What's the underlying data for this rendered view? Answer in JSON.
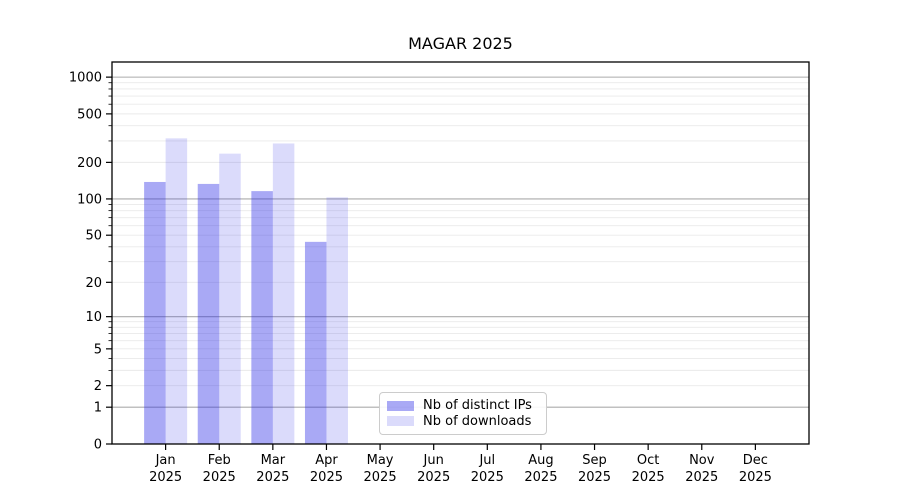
{
  "title": "MAGAR 2025",
  "chart_data": {
    "type": "bar",
    "title": "MAGAR 2025",
    "xlabel": "",
    "ylabel": "",
    "x_axis": {
      "months": [
        "Jan",
        "Feb",
        "Mar",
        "Apr",
        "May",
        "Jun",
        "Jul",
        "Aug",
        "Sep",
        "Oct",
        "Nov",
        "Dec"
      ],
      "year": "2025"
    },
    "y_axis": {
      "scale": "log1p",
      "tick_labels": [
        0,
        1,
        2,
        5,
        10,
        20,
        50,
        100,
        200,
        500,
        1000
      ],
      "major_gridlines": [
        1,
        10,
        100,
        1000
      ],
      "minor_gridlines": [
        2,
        3,
        4,
        5,
        6,
        7,
        8,
        9,
        20,
        30,
        40,
        50,
        60,
        70,
        80,
        90,
        200,
        300,
        400,
        500,
        600,
        700,
        800,
        900
      ],
      "ylim": [
        0,
        1330
      ]
    },
    "series": [
      {
        "name": "Nb of distinct IPs",
        "key": "distinct-ips",
        "color": "rgba(40,40,230,0.40)",
        "color_hex_on_white": "#a9a9f5",
        "values": [
          138,
          133,
          116,
          44,
          0,
          0,
          0,
          0,
          0,
          0,
          0,
          0
        ]
      },
      {
        "name": "Nb of downloads",
        "key": "downloads",
        "color": "rgba(40,40,230,0.17)",
        "color_hex_on_white": "#dadaf8",
        "values": [
          315,
          236,
          286,
          103,
          0,
          0,
          0,
          0,
          0,
          0,
          0,
          0
        ]
      }
    ],
    "legend": {
      "position": "lower-center",
      "items": [
        "Nb of distinct IPs",
        "Nb of downloads"
      ]
    },
    "grid": true
  },
  "colors": {
    "axis": "#000000",
    "major_grid": "#ababab",
    "minor_grid": "#eaeaea",
    "text": "#000000",
    "legend_border": "#cccccc"
  }
}
